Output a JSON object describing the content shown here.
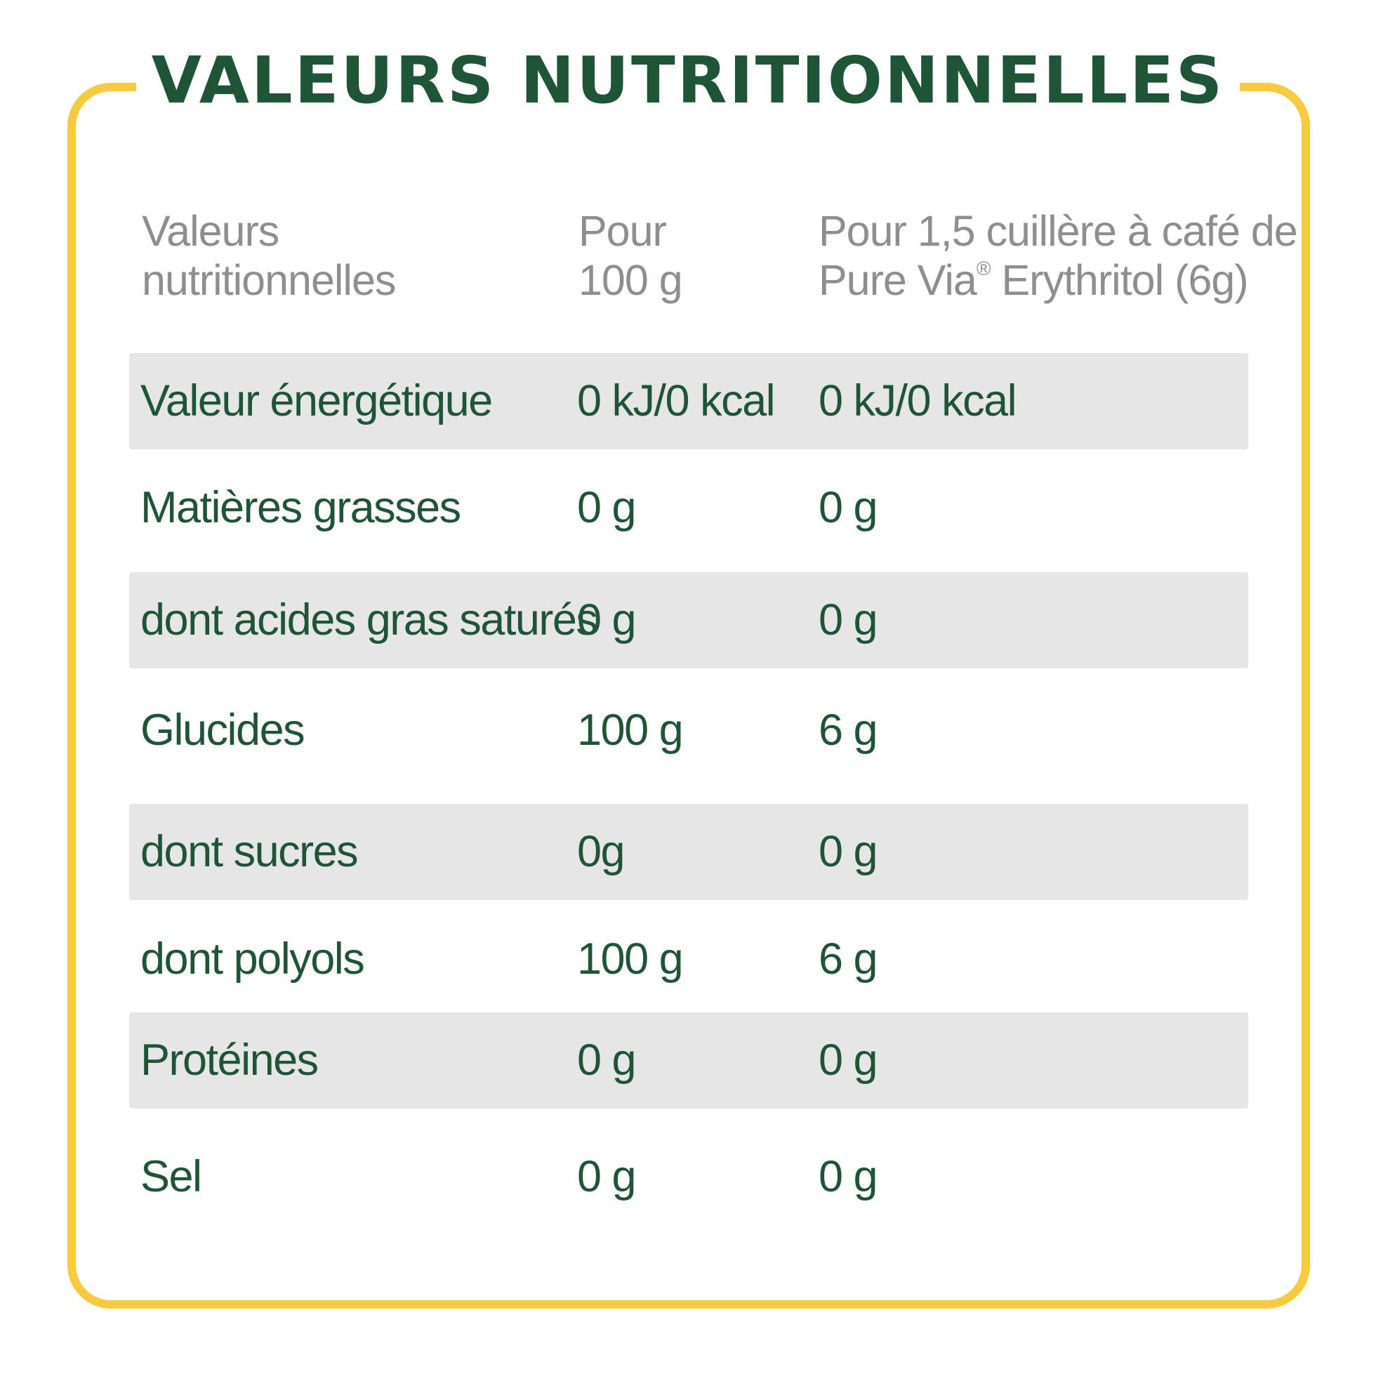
{
  "title": "VALEURS NUTRITIONNELLES",
  "colors": {
    "frame": "#f7cb3c",
    "title_text": "#1e5537",
    "body_text": "#1e5537",
    "header_text": "#8e8e8e",
    "row_shade": "#e6e6e6"
  },
  "headers": {
    "col1_line1": "Valeurs",
    "col1_line2": "nutritionnelles",
    "col2_line1": "Pour",
    "col2_line2": "100 g",
    "col3_line1": "Pour 1,5 cuillère à café de",
    "col3_line2_a": "Pure Via",
    "col3_line2_reg": "®",
    "col3_line2_b": " Erythritol (6g)"
  },
  "rows": [
    {
      "name": "Valeur énergétique",
      "per100": "0 kJ/0 kcal",
      "perServing": "0 kJ/0 kcal"
    },
    {
      "name": "Matières grasses",
      "per100": "0 g",
      "perServing": "0 g"
    },
    {
      "name": "dont acides gras saturés",
      "per100": "0 g",
      "perServing": "0 g"
    },
    {
      "name": "Glucides",
      "per100": "100 g",
      "perServing": "6 g"
    },
    {
      "name": "dont sucres",
      "per100": "0g",
      "perServing": "0 g"
    },
    {
      "name": "dont polyols",
      "per100": "100 g",
      "perServing": "6 g"
    },
    {
      "name": "Protéines",
      "per100": "0 g",
      "perServing": "0 g"
    },
    {
      "name": "Sel",
      "per100": "0 g",
      "perServing": "0 g"
    }
  ]
}
